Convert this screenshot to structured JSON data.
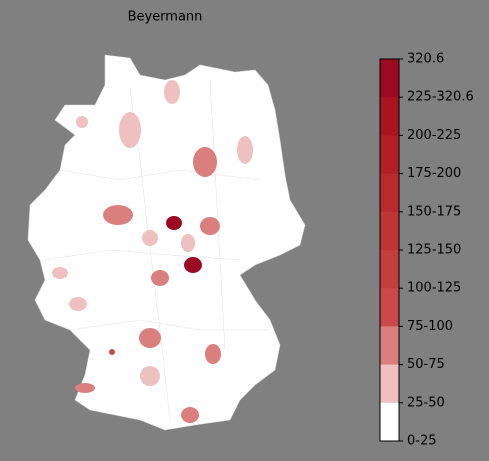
{
  "title": "Beyermann",
  "colorbar": {
    "labels": [
      "320.6",
      "225-320.6",
      "200-225",
      "175-200",
      "150-175",
      "125-150",
      "100-125",
      "75-100",
      "50-75",
      "25-50",
      "0-25"
    ],
    "colors": [
      "#9b0a20",
      "#a8141f",
      "#b21f24",
      "#b92a2c",
      "#c03434",
      "#c53d3d",
      "#ca4848",
      "#da7e7e",
      "#efc0c0",
      "#ffffff"
    ]
  }
}
